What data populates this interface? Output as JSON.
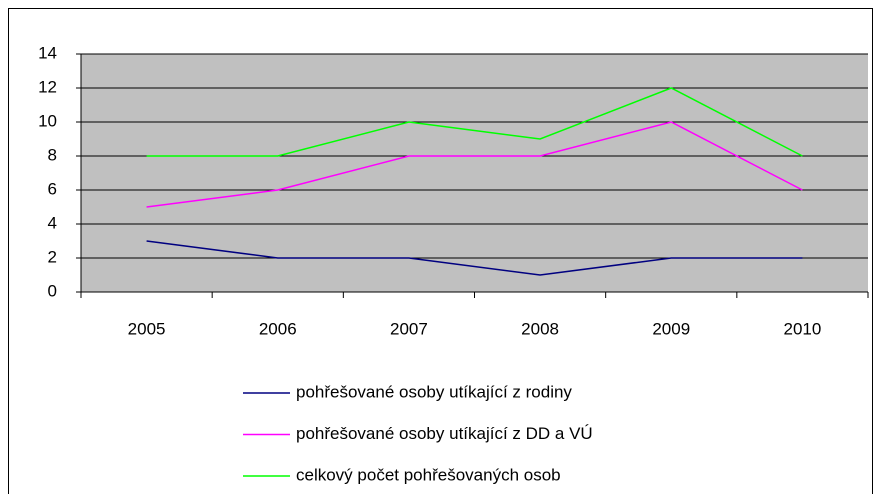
{
  "chart_data": {
    "type": "line",
    "categories": [
      "2005",
      "2006",
      "2007",
      "2008",
      "2009",
      "2010"
    ],
    "series": [
      {
        "name": "pohřešované osoby utíkající z rodiny",
        "color": "#000080",
        "values": [
          3,
          2,
          2,
          1,
          2,
          2
        ]
      },
      {
        "name": "pohřešované osoby utíkající z DD a VÚ",
        "color": "#ff00ff",
        "values": [
          5,
          6,
          8,
          8,
          10,
          6
        ]
      },
      {
        "name": "celkový počet pohřešovaných osob",
        "color": "#00ff00",
        "values": [
          8,
          8,
          10,
          9,
          12,
          8
        ]
      }
    ],
    "ylim": [
      0,
      14
    ],
    "yticks": [
      0,
      2,
      4,
      6,
      8,
      10,
      12,
      14
    ],
    "grid": true,
    "legend": "bottom"
  }
}
